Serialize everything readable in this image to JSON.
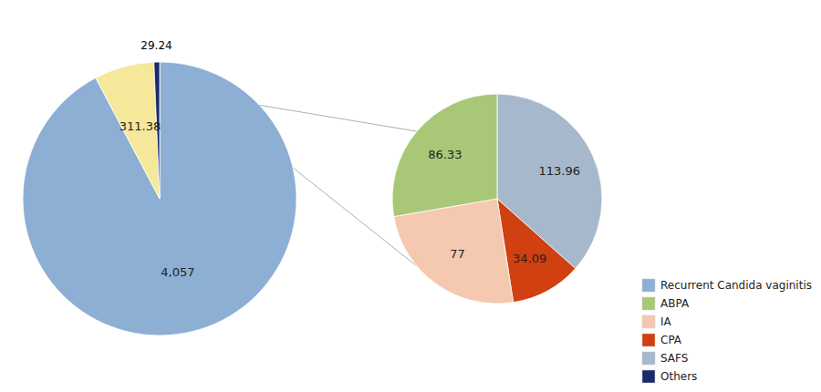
{
  "chart_data": [
    {
      "type": "pie",
      "values": [
        4057,
        311.38,
        29.24
      ],
      "value_labels": [
        "4,057",
        "311.38",
        "29.24"
      ],
      "colors": [
        "#8dafd4",
        "#f5e89a",
        "#1a2a6a"
      ],
      "data_labels": true,
      "legend": "lower right",
      "legend_entries": [
        {
          "name": "Recurrent Candida vaginitis",
          "color": "#8dafd4"
        },
        {
          "name": "ABPA",
          "color": "#a8c878"
        },
        {
          "name": "IA",
          "color": "#f5c8b0"
        },
        {
          "name": "CPA",
          "color": "#d04010"
        },
        {
          "name": "SAFS",
          "color": "#a8b8cc"
        },
        {
          "name": "Others",
          "color": "#1a2a6a"
        }
      ]
    },
    {
      "type": "pie",
      "values": [
        113.96,
        34.09,
        77,
        86.33
      ],
      "colors": [
        "#a8b8cc",
        "#d04010",
        "#f5c8b0",
        "#a8c878"
      ],
      "data_labels": true
    }
  ]
}
